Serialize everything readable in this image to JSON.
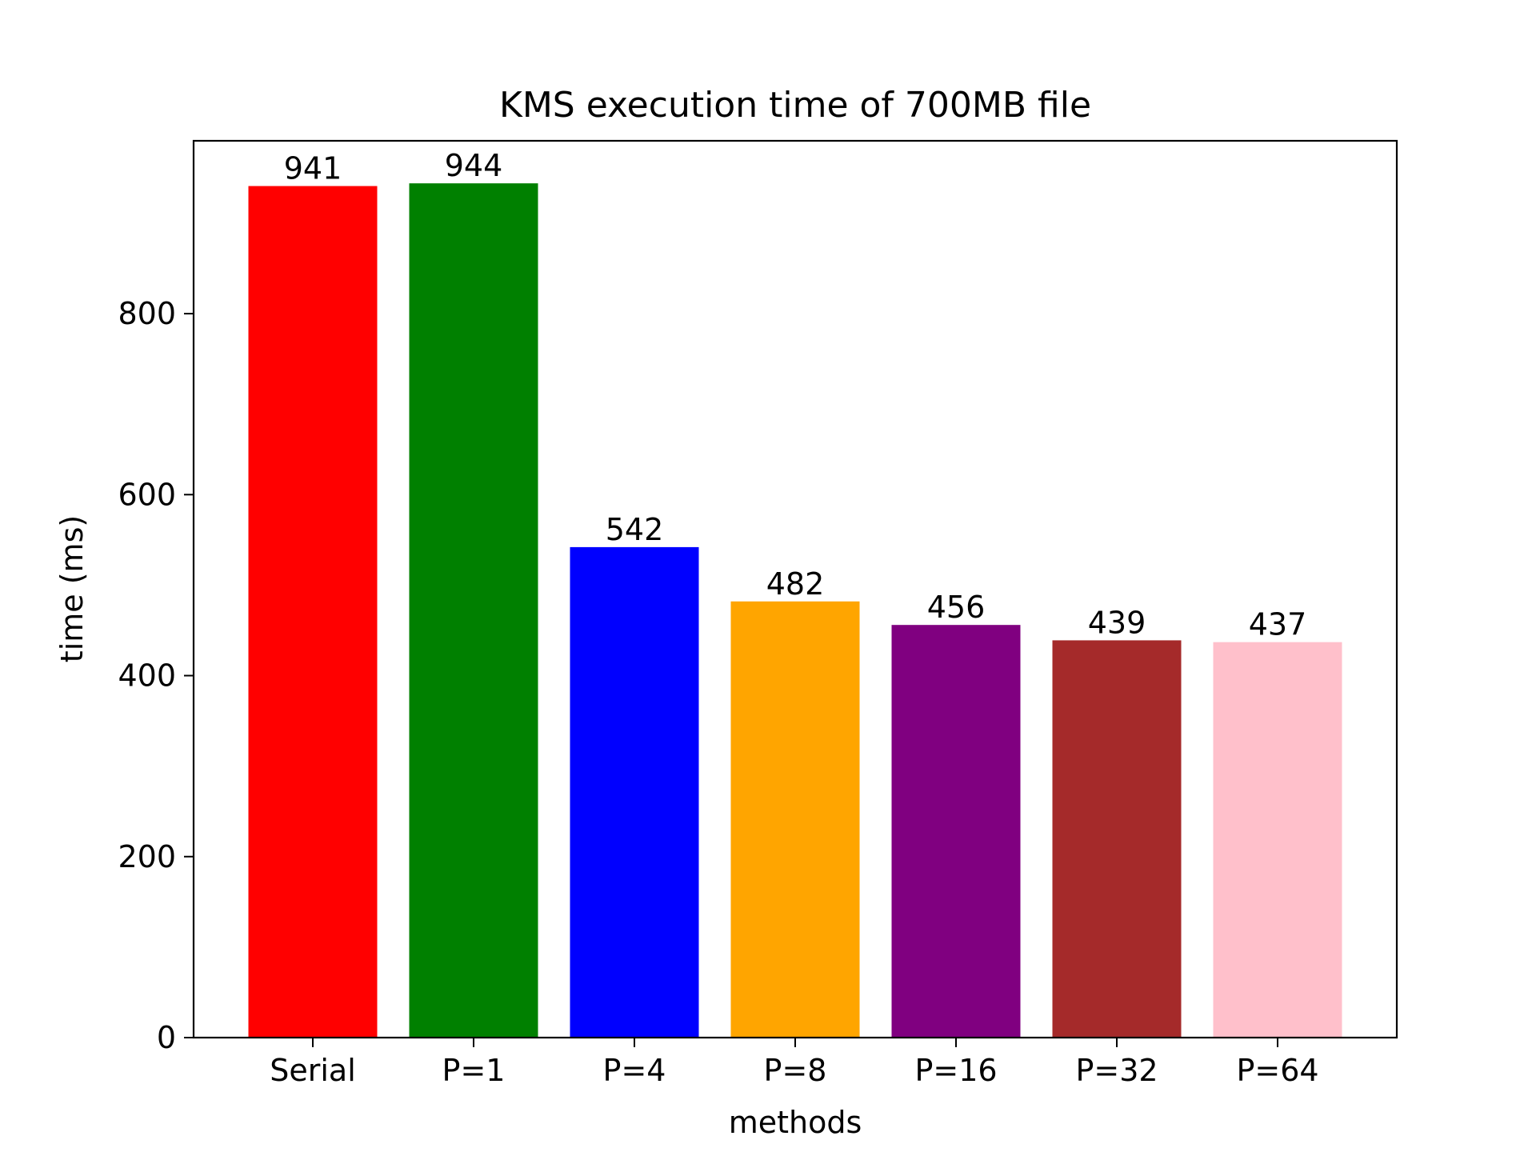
{
  "chart_data": {
    "type": "bar",
    "title": "KMS execution time of 700MB file",
    "xlabel": "methods",
    "ylabel": "time (ms)",
    "categories": [
      "Serial",
      "P=1",
      "P=4",
      "P=8",
      "P=16",
      "P=32",
      "P=64"
    ],
    "values": [
      941,
      944,
      542,
      482,
      456,
      439,
      437
    ],
    "data_labels": [
      "941",
      "944",
      "542",
      "482",
      "456",
      "439",
      "437"
    ],
    "colors": [
      "#ff0000",
      "#008000",
      "#0000ff",
      "#ffa500",
      "#800080",
      "#a52a2a",
      "#ffc0cb"
    ],
    "yticks": [
      0,
      200,
      400,
      600,
      800
    ],
    "ytick_labels": [
      "0",
      "200",
      "400",
      "600",
      "800"
    ],
    "ylim": [
      0,
      991
    ],
    "grid": false,
    "legend": "none"
  }
}
